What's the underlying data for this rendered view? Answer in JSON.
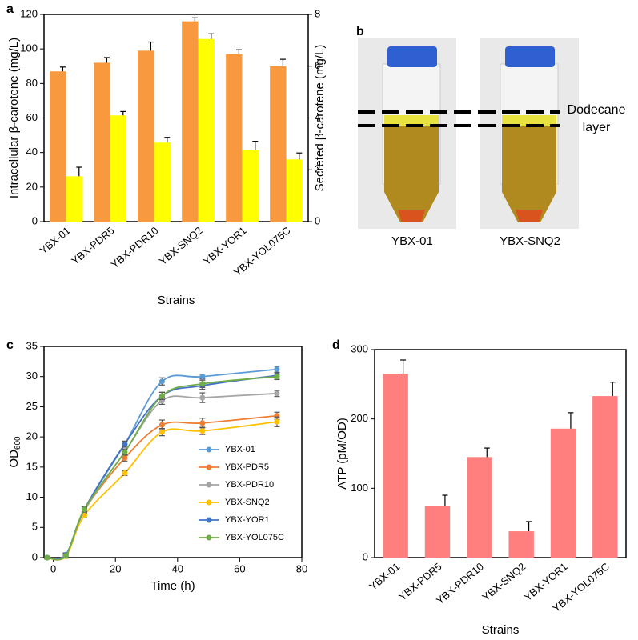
{
  "chart_data": [
    {
      "panel": "a",
      "type": "bar",
      "categories": [
        "YBX-01",
        "YBX-PDR5",
        "YBX-PDR10",
        "YBX-SNQ2",
        "YBX-YOR1",
        "YBX-YOL075C"
      ],
      "series": [
        {
          "color": "#f9993f",
          "values": [
            87,
            92,
            99,
            116,
            97,
            90
          ],
          "errors": [
            2.5,
            3,
            5,
            2,
            2.5,
            4
          ]
        },
        {
          "color": "#ffff00",
          "axis": "y2",
          "values": [
            1.75,
            4.1,
            3.05,
            7.05,
            2.75,
            2.4
          ],
          "errors": [
            0.35,
            0.15,
            0.2,
            0.2,
            0.35,
            0.25
          ]
        }
      ],
      "ylim": [
        0,
        120
      ],
      "yticks": [
        0,
        20,
        40,
        60,
        80,
        100,
        120
      ],
      "y2lim": [
        0,
        8
      ],
      "y2ticks": [
        0,
        2,
        4,
        6,
        8
      ],
      "ylabel": "Intracellular β-carotene (mg/L)",
      "y2label": "Secreted β-carotene (mg/L)",
      "xlabel": "Strains"
    },
    {
      "panel": "c",
      "type": "line",
      "x": [
        -2,
        4,
        10,
        23,
        35,
        48,
        72
      ],
      "series": [
        {
          "name": "YBX-01",
          "color": "#5b9bd5",
          "values": [
            0,
            0.5,
            8,
            18.8,
            29.2,
            30,
            31.2
          ],
          "errors": [
            0.2,
            0.3,
            0.4,
            0.5,
            0.6,
            0.4,
            0.5
          ]
        },
        {
          "name": "YBX-PDR5",
          "color": "#ed7d31",
          "values": [
            0,
            0.3,
            7.8,
            16.5,
            22,
            22.3,
            23.5
          ],
          "errors": [
            0.2,
            0.3,
            0.4,
            0.5,
            0.8,
            0.8,
            0.6
          ]
        },
        {
          "name": "YBX-PDR10",
          "color": "#a5a5a5",
          "values": [
            0,
            0.4,
            7.8,
            17.5,
            26,
            26.5,
            27.2
          ],
          "errors": [
            0.2,
            0.3,
            0.4,
            0.5,
            0.6,
            0.8,
            0.5
          ]
        },
        {
          "name": "YBX-SNQ2",
          "color": "#ffc000",
          "values": [
            0,
            0.2,
            7,
            14,
            20.8,
            21,
            22.5
          ],
          "errors": [
            0.2,
            0.3,
            0.4,
            0.4,
            0.6,
            0.6,
            0.8
          ]
        },
        {
          "name": "YBX-YOR1",
          "color": "#4472c4",
          "values": [
            0,
            0.4,
            8,
            18.8,
            26.8,
            28.5,
            30.2
          ],
          "errors": [
            0.2,
            0.3,
            0.4,
            0.5,
            0.6,
            0.6,
            0.5
          ]
        },
        {
          "name": "YBX-YOL075C",
          "color": "#70ad47",
          "values": [
            0,
            0.3,
            8,
            17.5,
            26.8,
            28.8,
            30
          ],
          "errors": [
            0.2,
            0.3,
            0.4,
            0.5,
            0.6,
            0.6,
            0.5
          ]
        }
      ],
      "xlim": [
        -3,
        80
      ],
      "xticks": [
        0,
        20,
        40,
        60,
        80
      ],
      "ylim": [
        0,
        35
      ],
      "yticks": [
        0,
        5,
        10,
        15,
        20,
        25,
        30,
        35
      ],
      "xlabel": "Time (h)",
      "ylabel": "OD",
      "ylabel_subscript": "600",
      "legend": "right"
    },
    {
      "panel": "d",
      "type": "bar",
      "categories": [
        "YBX-01",
        "YBX-PDR5",
        "YBX-PDR10",
        "YBX-SNQ2",
        "YBX-YOR1",
        "YBX-YOL075C"
      ],
      "series": [
        {
          "color": "#ff7f7f",
          "values": [
            265,
            75,
            145,
            38,
            186,
            233
          ],
          "errors": [
            20,
            15,
            13,
            14,
            23,
            20
          ]
        }
      ],
      "ylim": [
        0,
        300
      ],
      "yticks": [
        0,
        100,
        200,
        300
      ],
      "ylabel": "ATP (pM/OD)",
      "xlabel": "Strains"
    }
  ],
  "photo": {
    "panel": "b",
    "annotation": "Dodecane layer",
    "tubes": [
      "YBX-01",
      "YBX-SNQ2"
    ]
  }
}
